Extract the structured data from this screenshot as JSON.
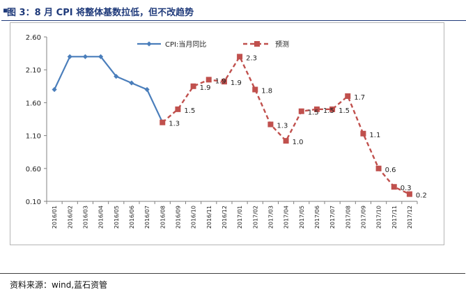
{
  "title": "图 3：8 月 CPI 将整体基数拉低，但不改趋势",
  "source": "资料来源：wind,蓝石资管",
  "colors": {
    "actual": "#4a7ebb",
    "forecast": "#c0504d",
    "title": "#1f3a7a"
  },
  "chart_data": {
    "type": "line",
    "title": "",
    "xlabel": "",
    "ylabel": "",
    "ylim": [
      0.1,
      2.6
    ],
    "yticks": [
      "0.10",
      "0.60",
      "1.10",
      "1.60",
      "2.10",
      "2.60"
    ],
    "grid": false,
    "legend": "top",
    "categories": [
      "2016/01",
      "2016/02",
      "2016/03",
      "2016/04",
      "2016/05",
      "2016/06",
      "2016/07",
      "2016/08",
      "2016/09",
      "2016/10",
      "2016/11",
      "2016/12",
      "2017/01",
      "2017/02",
      "2017/03",
      "2017/04",
      "2017/05",
      "2017/06",
      "2017/07",
      "2017/08",
      "2017/09",
      "2017/10",
      "2017/11",
      "2017/12"
    ],
    "series": [
      {
        "name": "CPI:当月同比",
        "style": "solid-diamond",
        "values": [
          1.8,
          2.3,
          2.3,
          2.3,
          2.0,
          1.9,
          1.8,
          1.3,
          null,
          null,
          null,
          null,
          null,
          null,
          null,
          null,
          null,
          null,
          null,
          null,
          null,
          null,
          null,
          null
        ]
      },
      {
        "name": "预测",
        "style": "dashed-square",
        "values": [
          null,
          null,
          null,
          null,
          null,
          null,
          null,
          1.3,
          1.5,
          1.85,
          1.95,
          1.92,
          2.3,
          1.8,
          1.27,
          1.02,
          1.47,
          1.5,
          1.5,
          1.7,
          1.13,
          0.6,
          0.32,
          0.21
        ],
        "labels": [
          null,
          null,
          null,
          null,
          null,
          null,
          null,
          "1.3",
          "1.5",
          "1.9",
          "1.9",
          "1.9",
          "2.3",
          "1.8",
          "1.3",
          "1.0",
          "1.5",
          "1.5",
          "1.5",
          "1.7",
          "1.1",
          "0.6",
          "0.3",
          "0.2"
        ]
      }
    ]
  }
}
